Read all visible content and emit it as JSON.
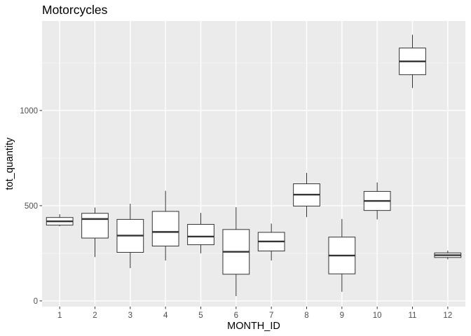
{
  "chart_data": {
    "type": "boxplot",
    "title": "Motorcycles",
    "xlabel": "MONTH_ID",
    "ylabel": "tot_quantity",
    "categories": [
      "1",
      "2",
      "3",
      "4",
      "5",
      "6",
      "7",
      "8",
      "9",
      "10",
      "11",
      "12"
    ],
    "y_ticks": [
      0,
      500,
      1000
    ],
    "y_tick_labels": [
      "0",
      "500",
      "1000"
    ],
    "ylim": [
      -30,
      1470
    ],
    "grid": true,
    "boxes": [
      {
        "min": 392,
        "q1": 398,
        "median": 418,
        "q3": 438,
        "max": 455
      },
      {
        "min": 230,
        "q1": 330,
        "median": 430,
        "q3": 460,
        "max": 490
      },
      {
        "min": 172,
        "q1": 255,
        "median": 343,
        "q3": 428,
        "max": 510
      },
      {
        "min": 212,
        "q1": 288,
        "median": 362,
        "q3": 470,
        "max": 578
      },
      {
        "min": 250,
        "q1": 295,
        "median": 338,
        "q3": 402,
        "max": 462
      },
      {
        "min": 25,
        "q1": 140,
        "median": 258,
        "q3": 375,
        "max": 492
      },
      {
        "min": 212,
        "q1": 262,
        "median": 312,
        "q3": 360,
        "max": 406
      },
      {
        "min": 440,
        "q1": 498,
        "median": 558,
        "q3": 615,
        "max": 672
      },
      {
        "min": 48,
        "q1": 142,
        "median": 238,
        "q3": 335,
        "max": 430
      },
      {
        "min": 428,
        "q1": 475,
        "median": 525,
        "q3": 575,
        "max": 622
      },
      {
        "min": 1118,
        "q1": 1188,
        "median": 1258,
        "q3": 1328,
        "max": 1398
      },
      {
        "min": 218,
        "q1": 228,
        "median": 240,
        "q3": 252,
        "max": 264
      }
    ],
    "colors": {
      "panel_background": "#ebebeb",
      "grid_major": "#ffffff",
      "grid_minor": "#f2f2f2",
      "box_fill": "#ffffff",
      "box_stroke": "#333333",
      "tick_mark": "#333333"
    }
  }
}
